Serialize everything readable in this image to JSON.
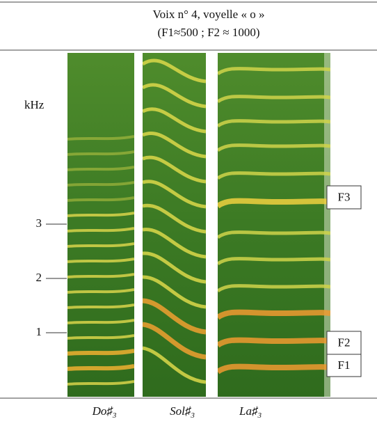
{
  "header": {
    "line1": "Voix n° 4, voyelle « o »",
    "line2": "(F1≈500 ; F2 ≈ 1000)"
  },
  "axis": {
    "unit": "kHz",
    "ticks": [
      "3",
      "2",
      "1"
    ]
  },
  "formants": [
    "F3",
    "F2",
    "F1"
  ],
  "notes": [
    {
      "name": "Do♯",
      "octave": "3"
    },
    {
      "name": "Sol♯",
      "octave": "3"
    },
    {
      "name": "La♯",
      "octave": "3"
    }
  ]
}
